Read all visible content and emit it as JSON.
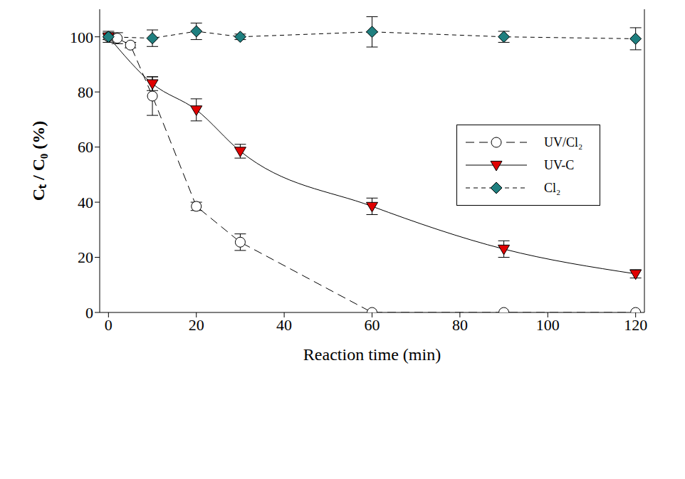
{
  "chart_data": {
    "type": "line",
    "x_label": "Reaction time (min)",
    "y_label": "Cₜ / C₀ (%)",
    "xlim": [
      -2,
      122
    ],
    "xticks": [
      0,
      20,
      40,
      60,
      80,
      100,
      120
    ],
    "ylim": [
      0,
      110
    ],
    "yticks": [
      0,
      20,
      40,
      60,
      80,
      100
    ],
    "grid": false,
    "legend": "upper right",
    "series": [
      {
        "name": "UV/Cl₂",
        "color": "#000000",
        "marker": "open_circle",
        "line_style": "long_dash",
        "x": [
          0,
          2,
          5,
          10,
          20,
          30,
          60,
          90,
          120
        ],
        "values": [
          100,
          99.5,
          97,
          78.5,
          38.5,
          25.5,
          0,
          0,
          0
        ],
        "errors": [
          2,
          2,
          1,
          7,
          1.5,
          3,
          0,
          0,
          0
        ]
      },
      {
        "name": "UV-C",
        "color": "#e00000",
        "marker": "triangle_down",
        "line_style": "solid",
        "x": [
          0,
          10,
          20,
          30,
          60,
          90,
          120
        ],
        "values": [
          100,
          83,
          73.5,
          58.5,
          38.5,
          23,
          14
        ],
        "errors": [
          1,
          2.5,
          4,
          2.5,
          3,
          3,
          1.5
        ]
      },
      {
        "name": "Cl₂",
        "color": "#1f7f7f",
        "marker": "diamond",
        "line_style": "dashed",
        "x": [
          0,
          10,
          20,
          30,
          60,
          90,
          120
        ],
        "values": [
          100,
          99.5,
          102,
          100,
          101.8,
          100,
          99.3
        ],
        "errors": [
          1,
          3,
          3,
          1,
          5.5,
          2,
          4
        ]
      }
    ]
  }
}
